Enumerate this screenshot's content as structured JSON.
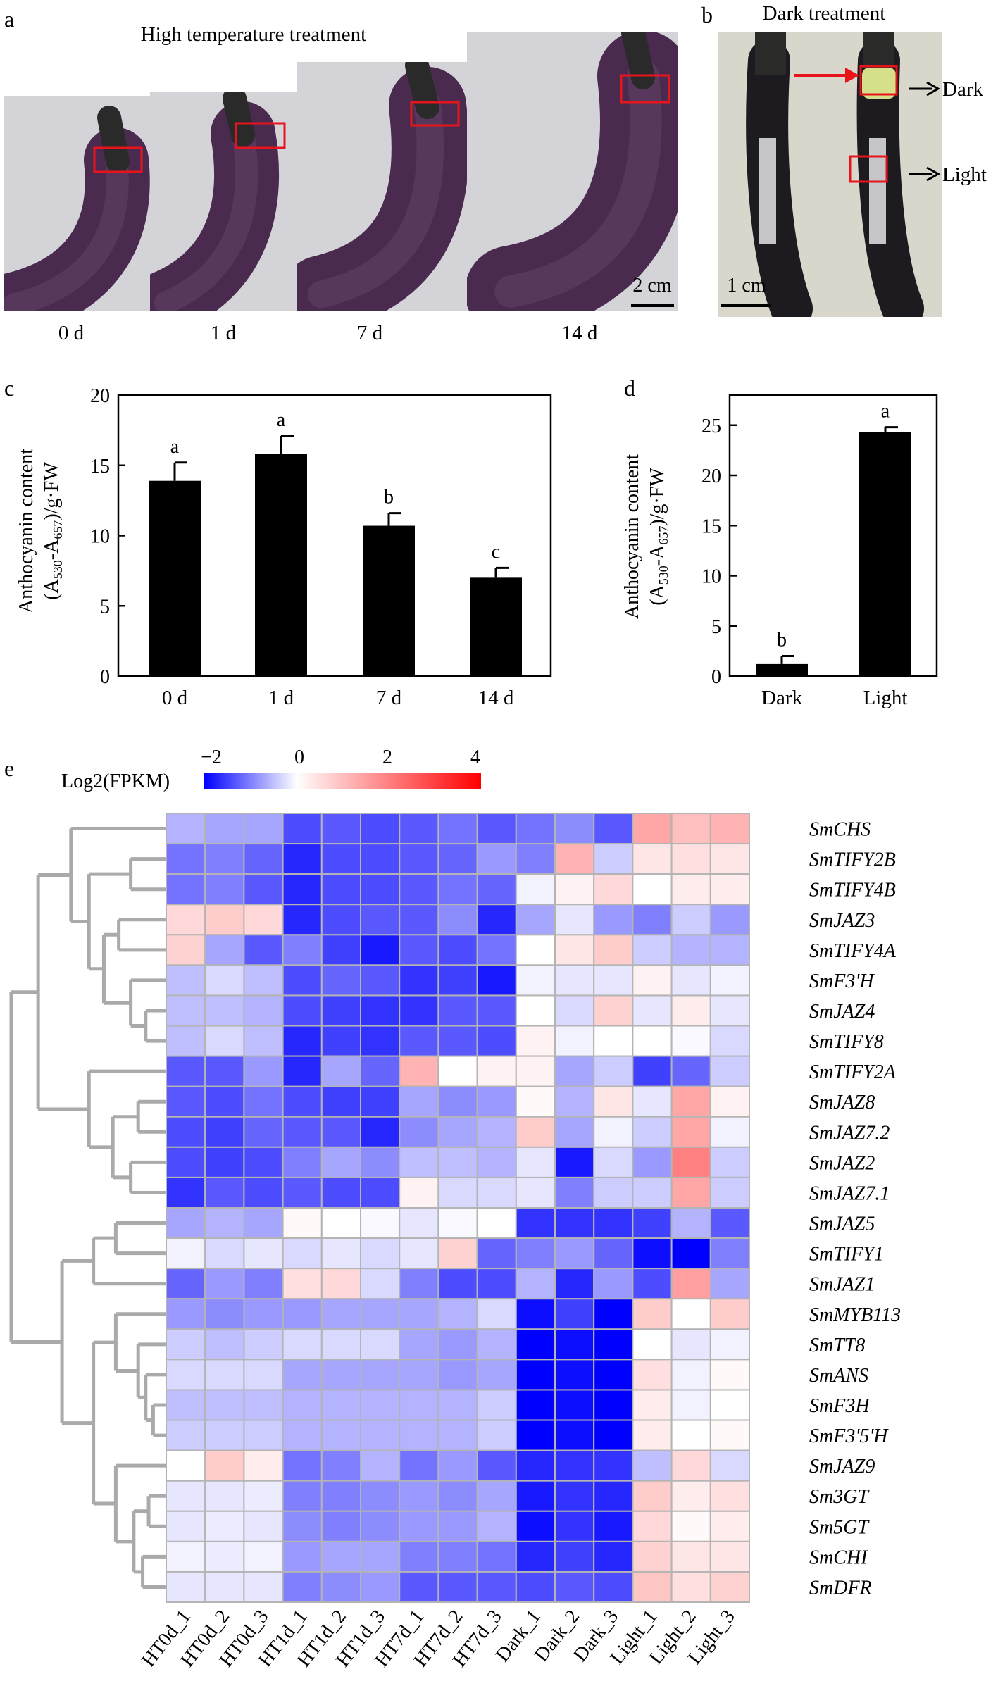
{
  "panels": {
    "a": "a",
    "b": "b",
    "c": "c",
    "d": "d",
    "e": "e"
  },
  "panel_a": {
    "title": "High temperature treatment",
    "days": [
      "0 d",
      "1 d",
      "7 d",
      "14 d"
    ],
    "scale": "2 cm"
  },
  "panel_b": {
    "title": "Dark treatment",
    "dark": "Dark",
    "light": "Light",
    "scale": "1 cm"
  },
  "colors": {
    "bar": "#000000",
    "highlight_box": "#e8141c",
    "dendrogram": "#aaaaaa",
    "low": "#0000ff",
    "mid": "#ffffff",
    "high": "#ff0000"
  },
  "chart_data": [
    {
      "type": "bar",
      "panel": "c",
      "title": "",
      "categories": [
        "0 d",
        "1 d",
        "7 d",
        "14 d"
      ],
      "values": [
        13.9,
        15.8,
        10.7,
        7.0
      ],
      "errors": [
        1.3,
        1.3,
        0.9,
        0.7
      ],
      "letters": [
        "a",
        "a",
        "b",
        "c"
      ],
      "ylabel_line1": "Anthocyanin content",
      "ylabel_line2": [
        "(A",
        "530",
        "-A",
        "657",
        ")/g·FW"
      ],
      "ylim": [
        0,
        20
      ],
      "yticks": [
        0,
        5,
        10,
        15,
        20
      ]
    },
    {
      "type": "bar",
      "panel": "d",
      "title": "",
      "categories": [
        "Dark",
        "Light"
      ],
      "values": [
        1.2,
        24.3
      ],
      "errors": [
        0.8,
        0.5
      ],
      "letters": [
        "b",
        "a"
      ],
      "ylabel_line1": "Anthocyanin content",
      "ylabel_line2": [
        "(A",
        "530",
        "-A",
        "657",
        ")/g·FW"
      ],
      "ylim": [
        0,
        28
      ],
      "yticks": [
        0,
        5,
        10,
        15,
        20,
        25
      ]
    },
    {
      "type": "heatmap",
      "panel": "e",
      "colorbar": {
        "label": "Log2(FPKM)",
        "ticks": [
          -2,
          0,
          2,
          4
        ],
        "range": [
          -2,
          4
        ]
      },
      "columns": [
        "HT0d_1",
        "HT0d_2",
        "HT0d_3",
        "HT1d_1",
        "HT1d_2",
        "HT1d_3",
        "HT7d_1",
        "HT7d_2",
        "HT7d_3",
        "Dark_1",
        "Dark_2",
        "Dark_3",
        "Light_1",
        "Light_2",
        "Light_3"
      ],
      "rows": [
        "SmCHS",
        "SmTIFY2B",
        "SmTIFY4B",
        "SmJAZ3",
        "SmTIFY4A",
        "SmF3'H",
        "SmJAZ4",
        "SmTIFY8",
        "SmTIFY2A",
        "SmJAZ8",
        "SmJAZ7.2",
        "SmJAZ2",
        "SmJAZ7.1",
        "SmJAZ5",
        "SmTIFY1",
        "SmJAZ1",
        "SmMYB113",
        "SmTT8",
        "SmANS",
        "SmF3H",
        "SmF3'5'H",
        "SmJAZ9",
        "Sm3GT",
        "Sm5GT",
        "SmCHI",
        "SmDFR"
      ],
      "values": [
        [
          -0.6,
          -0.7,
          -0.7,
          -1.4,
          -1.3,
          -1.4,
          -1.3,
          -1.1,
          -1.3,
          -1.1,
          -0.9,
          -1.3,
          1.4,
          1.0,
          1.2
        ],
        [
          -1.1,
          -1.0,
          -1.2,
          -1.7,
          -1.4,
          -1.4,
          -1.3,
          -1.2,
          -0.8,
          -1.0,
          1.2,
          -0.4,
          0.4,
          0.5,
          0.4
        ],
        [
          -1.1,
          -1.0,
          -1.3,
          -1.7,
          -1.4,
          -1.4,
          -1.3,
          -1.1,
          -1.2,
          -0.1,
          0.2,
          0.6,
          0.0,
          0.3,
          0.3
        ],
        [
          0.6,
          0.8,
          0.6,
          -1.7,
          -1.4,
          -1.3,
          -1.3,
          -0.9,
          -1.7,
          -0.7,
          -0.2,
          -0.8,
          -1.0,
          -0.4,
          -0.8
        ],
        [
          0.7,
          -0.7,
          -1.3,
          -1.0,
          -1.5,
          -1.8,
          -1.3,
          -1.4,
          -1.1,
          0.0,
          0.4,
          0.8,
          -0.4,
          -0.6,
          -0.6
        ],
        [
          -0.5,
          -0.3,
          -0.5,
          -1.4,
          -1.2,
          -1.3,
          -1.6,
          -1.5,
          -1.8,
          -0.1,
          -0.2,
          -0.2,
          0.2,
          -0.2,
          -0.1
        ],
        [
          -0.5,
          -0.5,
          -0.6,
          -1.4,
          -1.5,
          -1.6,
          -1.6,
          -1.3,
          -1.3,
          0.0,
          -0.3,
          0.7,
          -0.2,
          0.3,
          -0.2
        ],
        [
          -0.5,
          -0.3,
          -0.5,
          -1.7,
          -1.5,
          -1.6,
          -1.3,
          -1.3,
          -1.4,
          0.2,
          -0.1,
          0.0,
          0.0,
          -0.05,
          -0.3
        ],
        [
          -1.3,
          -1.3,
          -0.8,
          -1.7,
          -0.7,
          -1.2,
          1.2,
          0.0,
          0.2,
          0.2,
          -0.7,
          -0.4,
          -1.5,
          -1.2,
          -0.4
        ],
        [
          -1.3,
          -1.4,
          -1.1,
          -1.4,
          -1.5,
          -1.5,
          -0.7,
          -0.9,
          -0.8,
          0.1,
          -0.6,
          0.4,
          -0.2,
          1.4,
          0.2
        ],
        [
          -1.4,
          -1.5,
          -1.2,
          -1.3,
          -1.3,
          -1.7,
          -0.9,
          -0.7,
          -0.6,
          0.8,
          -0.7,
          -0.1,
          -0.4,
          1.4,
          -0.1
        ],
        [
          -1.4,
          -1.5,
          -1.4,
          -1.0,
          -0.7,
          -0.9,
          -0.5,
          -0.5,
          -0.6,
          -0.2,
          -1.8,
          -0.3,
          -0.8,
          2.0,
          -0.4
        ],
        [
          -1.6,
          -1.3,
          -1.4,
          -1.3,
          -1.4,
          -1.4,
          0.2,
          -0.3,
          -0.3,
          -0.2,
          -1.0,
          -0.4,
          -0.4,
          1.4,
          -0.4
        ],
        [
          -0.7,
          -0.6,
          -0.7,
          0.1,
          0.0,
          -0.05,
          -0.2,
          -0.05,
          0.0,
          -1.6,
          -1.6,
          -1.6,
          -1.5,
          -0.6,
          -1.3
        ],
        [
          -0.1,
          -0.3,
          -0.2,
          -0.3,
          -0.2,
          -0.3,
          -0.2,
          0.7,
          -1.2,
          -1.0,
          -0.8,
          -1.2,
          -1.9,
          -2.0,
          -1.0
        ],
        [
          -1.2,
          -0.8,
          -1.0,
          0.5,
          0.6,
          -0.3,
          -1.0,
          -1.4,
          -1.4,
          -0.6,
          -1.7,
          -0.8,
          -1.4,
          1.5,
          -0.7
        ],
        [
          -0.8,
          -0.9,
          -0.8,
          -0.8,
          -0.7,
          -0.7,
          -0.7,
          -0.6,
          -0.3,
          -1.9,
          -1.5,
          -2.0,
          0.8,
          0.0,
          0.8
        ],
        [
          -0.4,
          -0.5,
          -0.4,
          -0.3,
          -0.3,
          -0.3,
          -0.7,
          -0.8,
          -0.6,
          -2.0,
          -1.9,
          -2.0,
          0.0,
          -0.2,
          -0.1
        ],
        [
          -0.3,
          -0.3,
          -0.3,
          -0.7,
          -0.7,
          -0.7,
          -0.7,
          -0.8,
          -0.7,
          -2.0,
          -1.9,
          -2.0,
          0.5,
          -0.1,
          0.1
        ],
        [
          -0.5,
          -0.5,
          -0.5,
          -0.6,
          -0.6,
          -0.6,
          -0.6,
          -0.6,
          -0.4,
          -2.0,
          -1.9,
          -2.0,
          0.3,
          -0.1,
          0.0
        ],
        [
          -0.4,
          -0.4,
          -0.4,
          -0.6,
          -0.6,
          -0.6,
          -0.6,
          -0.6,
          -0.4,
          -2.0,
          -1.9,
          -2.0,
          0.3,
          0.0,
          0.1
        ],
        [
          0.0,
          0.8,
          0.3,
          -1.1,
          -1.0,
          -0.6,
          -1.1,
          -0.8,
          -1.3,
          -1.7,
          -1.6,
          -1.6,
          -0.5,
          0.6,
          -0.3
        ],
        [
          -0.2,
          -0.2,
          -0.15,
          -1.0,
          -1.0,
          -0.9,
          -0.8,
          -0.9,
          -0.7,
          -1.8,
          -1.6,
          -1.7,
          0.8,
          0.3,
          0.5
        ],
        [
          -0.2,
          -0.15,
          -0.2,
          -0.9,
          -1.0,
          -0.9,
          -0.8,
          -0.8,
          -0.6,
          -1.9,
          -1.6,
          -1.8,
          0.6,
          0.1,
          0.3
        ],
        [
          -0.1,
          -0.15,
          -0.1,
          -0.8,
          -0.7,
          -0.7,
          -1.0,
          -1.0,
          -1.1,
          -1.7,
          -1.5,
          -1.7,
          0.7,
          0.4,
          0.4
        ],
        [
          -0.2,
          -0.2,
          -0.2,
          -1.0,
          -0.9,
          -0.8,
          -1.3,
          -1.3,
          -1.3,
          -1.4,
          -1.3,
          -1.4,
          0.9,
          0.5,
          0.7
        ]
      ]
    }
  ]
}
